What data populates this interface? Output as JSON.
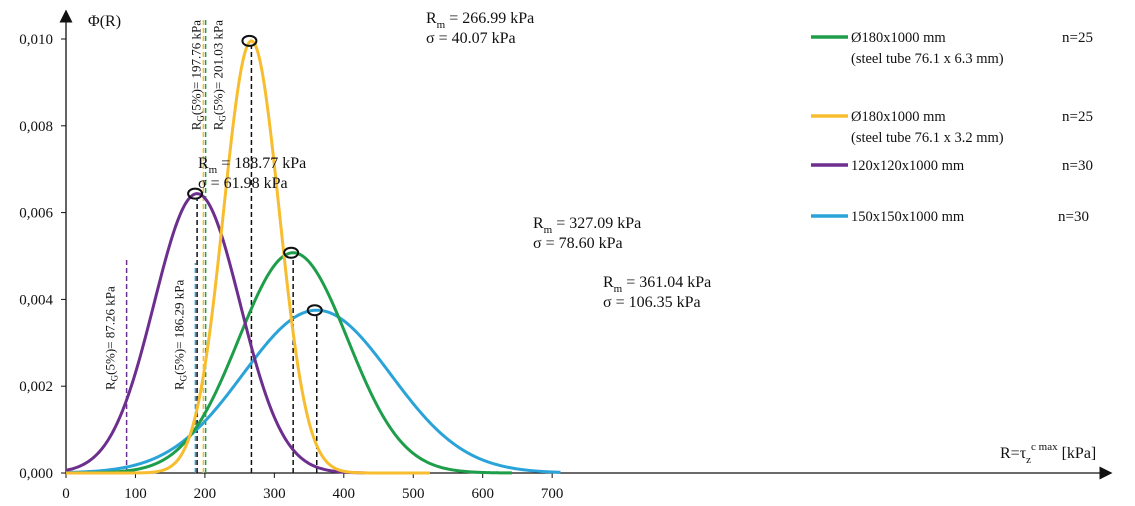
{
  "chart_data": {
    "type": "line",
    "ylabel": "Φ(R)",
    "xlabel": {
      "main": "R=τ",
      "sub": "z",
      "sup": "c max",
      "unit": " [kPa]"
    },
    "xlim": [
      0,
      730
    ],
    "ylim": [
      0,
      0.0105
    ],
    "xticks": [
      0,
      100,
      200,
      300,
      400,
      500,
      600,
      700
    ],
    "xtick_labels": [
      "0",
      "100",
      "200",
      "300",
      "400",
      "500",
      "600",
      "700"
    ],
    "yticks": [
      0,
      0.002,
      0.004,
      0.006,
      0.008,
      0.01
    ],
    "ytick_labels": [
      "0,000",
      "0,002",
      "0,004",
      "0,006",
      "0,008",
      "0,010"
    ],
    "grid": false,
    "legend_position": "top-right",
    "series": [
      {
        "name": "Ø180x1000 mm",
        "note": "(steel tube 76.1 x 6.3 mm)",
        "n": "n=25",
        "color": "#1e9e4a",
        "mean": 327.09,
        "sigma": 78.6,
        "x_range": [
          0,
          642
        ],
        "annotation": {
          "rm": " = 327.09 kPa",
          "sigma": "σ = 78.60 kPa"
        },
        "g5": {
          "value": 201.03,
          "label": "(5%)= 201.03 kPa"
        }
      },
      {
        "name": "Ø180x1000 mm",
        "note": "(steel tube 76.1 x 3.2 mm)",
        "n": "n=25",
        "color": "#f7bd2e",
        "mean": 266.99,
        "sigma": 40.07,
        "x_range": [
          0,
          525
        ],
        "annotation": {
          "rm": " = 266.99 kPa",
          "sigma": "σ = 40.07 kPa"
        },
        "g5": {
          "value": 197.76,
          "label": "(5%)= 197.76 kPa"
        }
      },
      {
        "name": "120x120x1000 mm",
        "note": "",
        "n": "n=30",
        "color": "#6d2f8e",
        "mean": 188.77,
        "sigma": 61.98,
        "x_range": [
          0,
          430
        ],
        "annotation": {
          "rm": " = 188.77 kPa",
          "sigma": "σ = 61.98 kPa"
        },
        "g5": {
          "value": 87.26,
          "label": "(5%)= 87.26 kPa"
        }
      },
      {
        "name": "150x150x1000 mm",
        "note": "",
        "n": "n=30",
        "color": "#2aa3d9",
        "mean": 361.04,
        "sigma": 106.35,
        "x_range": [
          0,
          712
        ],
        "annotation": {
          "rm": " = 361.04 kPa",
          "sigma": "σ = 106.35 kPa"
        },
        "g5": {
          "value": 186.29,
          "label": "(5%)= 186.29 kPa"
        }
      }
    ]
  }
}
